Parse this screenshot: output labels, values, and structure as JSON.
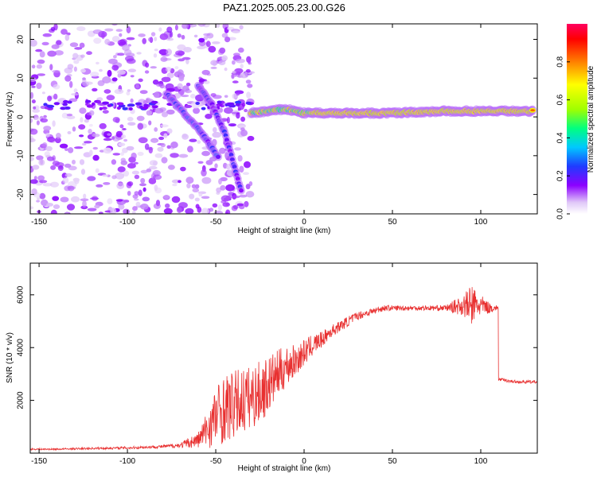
{
  "figure_title": "PAZ1.2025.005.23.00.G26",
  "chart_data": [
    {
      "type": "heatmap",
      "xlabel": "Height of straight line (km)",
      "ylabel": "Frequency (Hz)",
      "xlim": [
        -155,
        132
      ],
      "ylim": [
        -25,
        24
      ],
      "x_ticks": [
        -150,
        -100,
        -50,
        0,
        50,
        100
      ],
      "y_ticks": [
        -20,
        -10,
        0,
        10,
        20
      ],
      "colorbar": {
        "label": "Normalized spectral amplitude",
        "range": [
          0,
          1
        ],
        "ticks": [
          0.0,
          0.2,
          0.4,
          0.6,
          0.8
        ],
        "tick_labels": [
          "0.0",
          "0.2",
          "0.4",
          "0.6",
          "0.8"
        ],
        "colormap": [
          "#ffffff",
          "#e0c8f8",
          "#8c00ff",
          "#1f3bff",
          "#00c8ff",
          "#00ff80",
          "#a0ff00",
          "#ffff00",
          "#ff8000",
          "#ff0000",
          "#ff0060"
        ]
      },
      "ridges": [
        {
          "x": [
            -78,
            -70,
            -62,
            -55,
            -48
          ],
          "y": [
            6,
            2,
            -2,
            -6,
            -11
          ],
          "amplitude": 0.35
        },
        {
          "x": [
            -60,
            -52,
            -45,
            -40,
            -35
          ],
          "y": [
            8,
            3,
            -4,
            -12,
            -20
          ],
          "amplitude": 0.3
        },
        {
          "x": [
            -30,
            -20,
            -10,
            0,
            20,
            50,
            80,
            100,
            130
          ],
          "y": [
            1,
            1.5,
            2,
            1,
            1,
            1,
            1.5,
            1.5,
            1.5
          ],
          "amplitude": 0.85
        }
      ]
    },
    {
      "type": "line",
      "xlabel": "Height of straight line (km)",
      "ylabel": "SNR (10 * v/v)",
      "xlim": [
        -155,
        132
      ],
      "ylim": [
        0,
        7200
      ],
      "x_ticks": [
        -150,
        -100,
        -50,
        0,
        50,
        100
      ],
      "y_ticks": [
        2000,
        4000,
        6000
      ],
      "series": [
        {
          "color": "#e83030",
          "x": [
            -155,
            -140,
            -120,
            -100,
            -80,
            -70,
            -60,
            -55,
            -50,
            -45,
            -40,
            -35,
            -30,
            -25,
            -20,
            -15,
            -10,
            -5,
            0,
            5,
            10,
            15,
            20,
            25,
            30,
            35,
            40,
            45,
            50,
            60,
            70,
            80,
            90,
            95,
            100,
            105,
            109,
            110,
            115,
            120,
            132
          ],
          "y": [
            150,
            150,
            180,
            200,
            250,
            300,
            500,
            900,
            1400,
            1700,
            1800,
            2000,
            2100,
            2300,
            2600,
            3000,
            3300,
            3500,
            3800,
            4100,
            4300,
            4600,
            4800,
            5000,
            5200,
            5300,
            5400,
            5500,
            5500,
            5500,
            5500,
            5500,
            5600,
            5600,
            5600,
            5500,
            5500,
            2800,
            2750,
            2700,
            2700
          ],
          "noise_amplitude": [
            30,
            30,
            40,
            50,
            60,
            100,
            300,
            700,
            1200,
            1300,
            1300,
            1300,
            1200,
            1200,
            1100,
            900,
            800,
            600,
            500,
            400,
            300,
            250,
            200,
            200,
            150,
            150,
            120,
            120,
            100,
            100,
            100,
            100,
            400,
            800,
            400,
            200,
            100,
            60,
            60,
            60,
            60
          ]
        }
      ]
    }
  ]
}
